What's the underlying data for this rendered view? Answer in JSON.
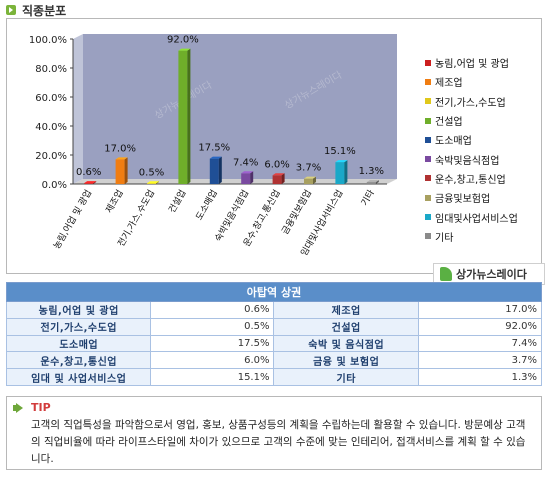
{
  "section_title": "직종분포",
  "chart_data": {
    "type": "bar",
    "categories": [
      "농림,어업 및 광업",
      "제조업",
      "전기,가스,수도업",
      "건설업",
      "도소매업",
      "숙박및음식점업",
      "운수,창고,통신업",
      "금융및보험업",
      "임대및사업서비스업",
      "기타"
    ],
    "values": [
      0.6,
      17.0,
      0.5,
      92.0,
      17.5,
      7.4,
      6.0,
      3.7,
      15.1,
      1.3
    ],
    "data_labels": [
      "0.6%",
      "17.0%",
      "0.5%",
      "92.0%",
      "17.5%",
      "7.4%",
      "6.0%",
      "3.7%",
      "15.1%",
      "1.3%"
    ],
    "y_ticks": [
      "0.0%",
      "20.0%",
      "40.0%",
      "60.0%",
      "80.0%",
      "100.0%"
    ],
    "ylim": [
      0,
      100
    ],
    "grid": false,
    "legend_position": "right",
    "colors": [
      "#cc1f1f",
      "#f07d12",
      "#e0c81b",
      "#6fae2a",
      "#1f4f96",
      "#7a4aa0",
      "#b03232",
      "#a8a060",
      "#1aa8c8",
      "#8a8a8a"
    ]
  },
  "legend": [
    "농림,어업 및 광업",
    "제조업",
    "전기,가스,수도업",
    "건설업",
    "도소매업",
    "숙박및음식점업",
    "운수,창고,통신업",
    "금융및보험업",
    "임대및사업서비스업",
    "기타"
  ],
  "brand": {
    "label": "상가뉴스레이다",
    "watermark": "상가뉴스레이다"
  },
  "table": {
    "title": "아탑역 상권",
    "rows": [
      [
        {
          "label": "농림,어업 및 광업",
          "value": "0.6%"
        },
        {
          "label": "제조업",
          "value": "17.0%"
        }
      ],
      [
        {
          "label": "전기,가스,수도업",
          "value": "0.5%"
        },
        {
          "label": "건설업",
          "value": "92.0%"
        }
      ],
      [
        {
          "label": "도소매업",
          "value": "17.5%"
        },
        {
          "label": "숙박 및 음식점업",
          "value": "7.4%"
        }
      ],
      [
        {
          "label": "운수,창고,통신업",
          "value": "6.0%"
        },
        {
          "label": "금융 및 보험업",
          "value": "3.7%"
        }
      ],
      [
        {
          "label": "임대 및 사업서비스업",
          "value": "15.1%"
        },
        {
          "label": "기타",
          "value": "1.3%"
        }
      ]
    ]
  },
  "tip": {
    "title": "TIP",
    "text": "고객의 직업특성을 파악함으로서 영업, 홍보, 상품구성등의 계획을 수립하는데 활용할 수 있습니다. 방문예상 고객의 직업비율에 따라 라이프스타일에 차이가 있으므로 고객의 수준에 맞는 인테리어, 접객서비스를 계획 할 수 있습니다."
  }
}
